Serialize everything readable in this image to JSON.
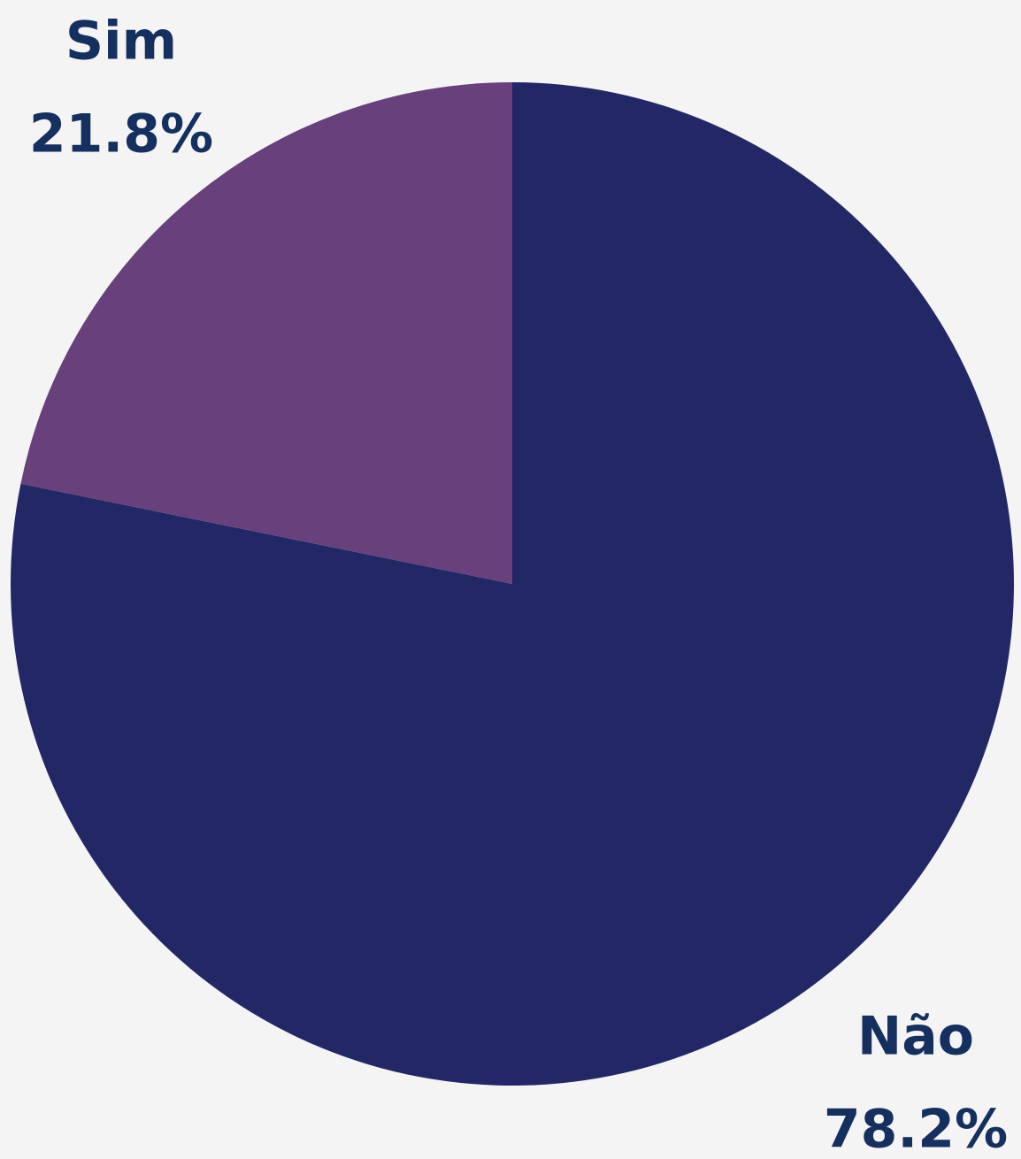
{
  "chart_data": {
    "type": "pie",
    "categories": [
      "Não",
      "Sim"
    ],
    "values": [
      78.2,
      21.8
    ],
    "value_labels": [
      "78.2%",
      "21.8%"
    ],
    "colors": [
      "#222866",
      "#67407c"
    ]
  }
}
